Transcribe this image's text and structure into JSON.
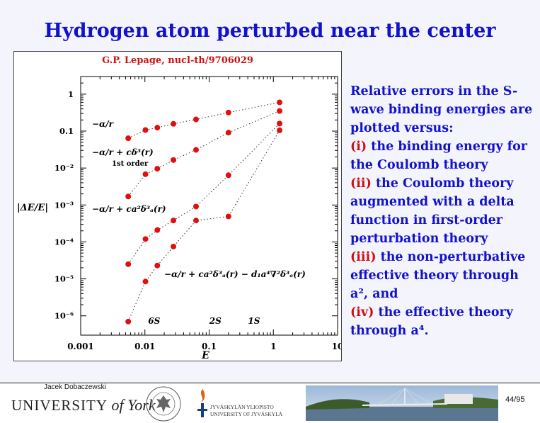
{
  "slide": {
    "title": "Hydrogen atom perturbed near the center",
    "description": [
      {
        "num": "",
        "text": "Relative errors in the S-wave binding energies are plotted versus:"
      },
      {
        "num": "(i)",
        "text": " the binding energy for the Coulomb theory"
      },
      {
        "num": "(ii)",
        "text": "  the Coulomb theory augmented with a delta function in first-order perturbation theory"
      },
      {
        "num": "(iii)",
        "text": " the non-perturbative effective theory through a², and"
      },
      {
        "num": "(iv)",
        "text": " the effective theory through a⁴."
      }
    ]
  },
  "footer": {
    "author": "Jacek Dobaczewski",
    "york_pre": "UNIVERSITY ",
    "york_of": "of",
    "york_post": " York",
    "jy_line1": "JYVÄSKYLÄN YLIOPISTO",
    "jy_line2": "UNIVERSITY OF JYVÄSKYLÄ",
    "page": "44/95"
  },
  "chart_data": {
    "type": "scatter",
    "title": "G.P. Lepage, nucl-th/9706029",
    "xlabel": "E",
    "ylabel": "|ΔE/E|",
    "x_scale": "log",
    "y_scale": "log",
    "xlim": [
      0.001,
      10
    ],
    "ylim": [
      3e-07,
      3
    ],
    "x_tick_labels": [
      "0.001",
      "0.01",
      "0.1",
      "1",
      "10"
    ],
    "x_ticks": [
      0.001,
      0.01,
      0.1,
      1,
      10
    ],
    "y_tick_labels": [
      "1",
      "0.1",
      "10⁻²",
      "10⁻³",
      "10⁻⁴",
      "10⁻⁵",
      "10⁻⁶"
    ],
    "y_ticks": [
      1,
      0.1,
      0.01,
      0.001,
      0.0001,
      1e-05,
      1e-06
    ],
    "state_labels": [
      {
        "text": "6S",
        "x": 0.0139
      },
      {
        "text": "2S",
        "x": 0.125
      },
      {
        "text": "1S",
        "x": 0.5
      }
    ],
    "marker_color": "#e01010",
    "series": [
      {
        "name": "−α/r",
        "x": [
          0.0055,
          0.0102,
          0.0156,
          0.0278,
          0.0625,
          0.2,
          1.25
        ],
        "y": [
          0.064,
          0.107,
          0.124,
          0.157,
          0.207,
          0.318,
          0.6
        ]
      },
      {
        "name": "−α/r + cδ³(r)",
        "note": "1st order",
        "x": [
          0.0055,
          0.0102,
          0.0156,
          0.0278,
          0.0625,
          0.2,
          1.25
        ],
        "y": [
          0.0017,
          0.0068,
          0.0096,
          0.0165,
          0.031,
          0.091,
          0.35
        ]
      },
      {
        "name": "−α/r + ca²δ³ₐ(r)",
        "x": [
          0.0055,
          0.0102,
          0.0156,
          0.0278,
          0.0625,
          0.2,
          1.25
        ],
        "y": [
          2.5e-05,
          0.00012,
          0.00021,
          0.00038,
          0.00091,
          0.0064,
          0.16
        ]
      },
      {
        "name": "−α/r + ca²δ³ₐ(r) − d₁a⁴∇²δ³ₐ(r)",
        "x": [
          0.0055,
          0.0102,
          0.0156,
          0.0278,
          0.0625,
          0.2,
          1.25
        ],
        "y": [
          7e-07,
          8.5e-06,
          2.3e-05,
          7.5e-05,
          0.00038,
          0.00049,
          0.105
        ]
      }
    ]
  }
}
